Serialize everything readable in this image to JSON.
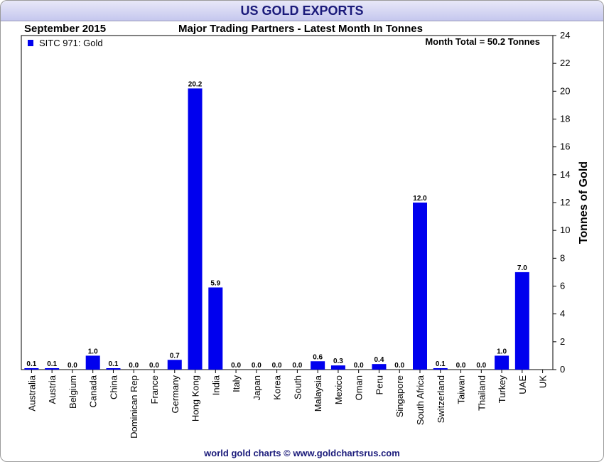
{
  "header": {
    "title": "US GOLD EXPORTS",
    "date": "September 2015",
    "subtitle": "Major Trading Partners - Latest Month In Tonnes",
    "footer": "world gold charts © www.goldchartsrus.com"
  },
  "colors": {
    "bar": "#0000ee",
    "title": "#1a1a7a"
  },
  "chart_data": {
    "type": "bar",
    "title": "US GOLD EXPORTS",
    "subtitle": "Major Trading Partners - Latest Month In Tonnes",
    "ylabel": "Tonnes of Gold",
    "xlabel": "",
    "ylim": [
      0,
      24
    ],
    "yticks": [
      0,
      2,
      4,
      6,
      8,
      10,
      12,
      14,
      16,
      18,
      20,
      22,
      24
    ],
    "legend": "SITC 971: Gold",
    "annotation": "Month Total = 50.2 Tonnes",
    "categories": [
      "Australia",
      "Austria",
      "Belgium",
      "Canada",
      "China",
      "Dominican Rep",
      "France",
      "Germany",
      "Hong Kong",
      "India",
      "Italy",
      "Japan",
      "Korea",
      "South",
      "Malaysia",
      "Mexico",
      "Oman",
      "Peru",
      "Singapore",
      "South Africa",
      "Switzerland",
      "Taiwan",
      "Thailand",
      "Turkey",
      "UAE",
      "UK"
    ],
    "values": [
      0.1,
      0.1,
      0.0,
      1.0,
      0.1,
      0.0,
      0.0,
      0.7,
      20.2,
      5.9,
      0.0,
      0.0,
      0.0,
      0.0,
      0.6,
      0.3,
      0.0,
      0.4,
      0.0,
      12.0,
      0.1,
      0.0,
      0.0,
      1.0,
      7.0,
      null
    ],
    "value_labels": [
      "0.1",
      "0.1",
      "0.0",
      "1.0",
      "0.1",
      "0.0",
      "0.0",
      "0.7",
      "20.2",
      "5.9",
      "0.0",
      "0.0",
      "0.0",
      "0.0",
      "0.6",
      "0.3",
      "0.0",
      "0.4",
      "0.0",
      "12.0",
      "0.1",
      "0.0",
      "0.0",
      "1.0",
      "7.0",
      ""
    ]
  }
}
